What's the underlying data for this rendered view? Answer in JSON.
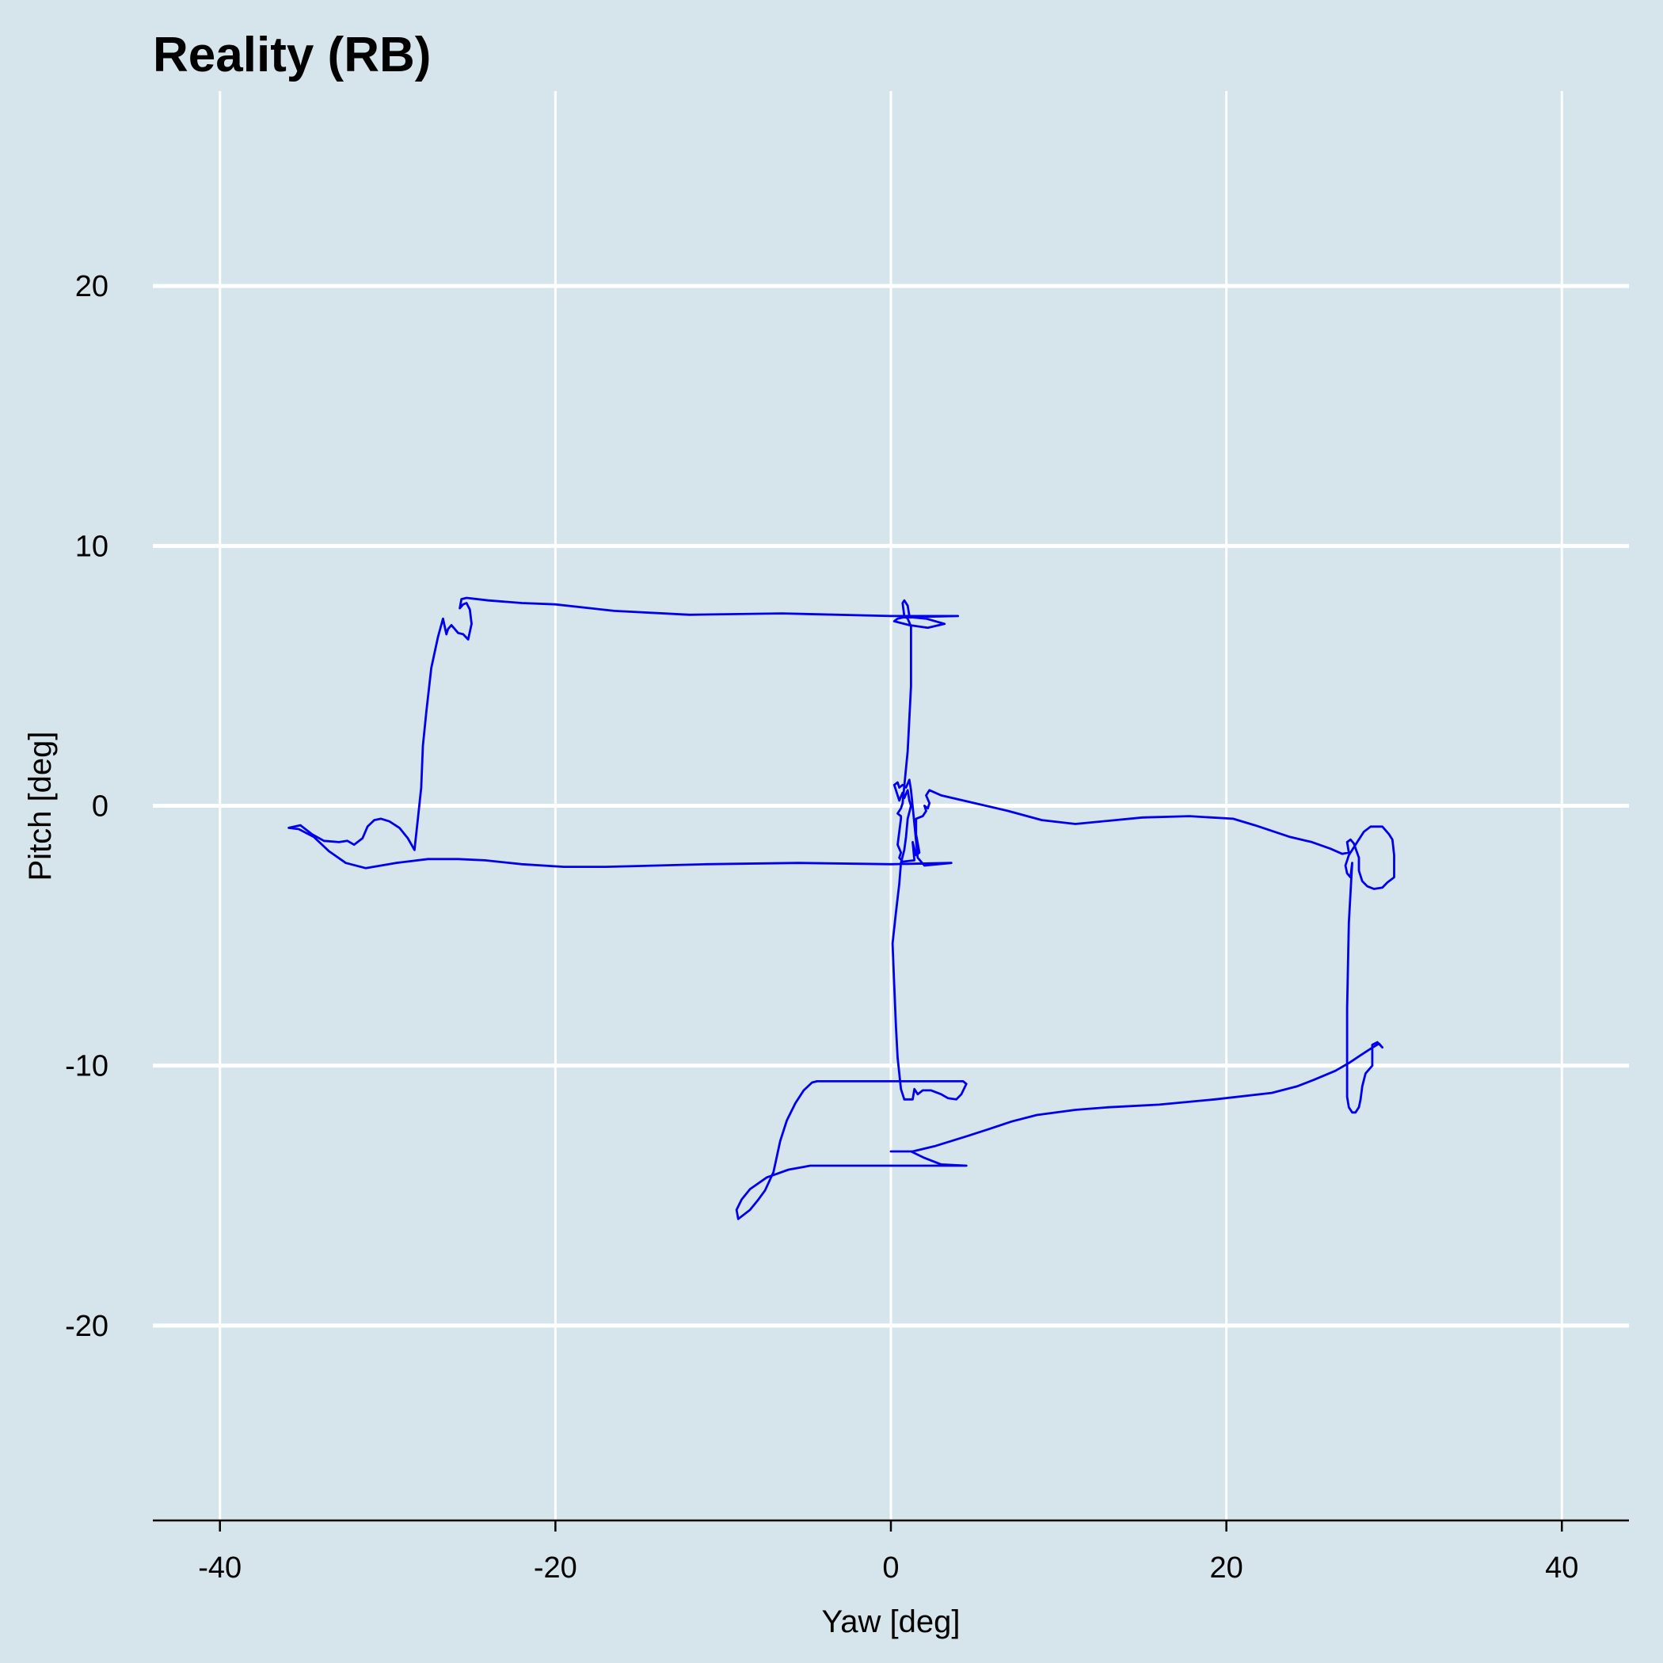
{
  "chart_data": {
    "type": "line",
    "title": "Reality (RB)",
    "xlabel": "Yaw [deg]",
    "ylabel": "Pitch [deg]",
    "xlim": [
      -44,
      44
    ],
    "ylim": [
      -27.5,
      27.5
    ],
    "x_ticks": [
      -40,
      -20,
      0,
      20,
      40
    ],
    "x_tick_labels": [
      "-40",
      "-20",
      "0",
      "20",
      "40"
    ],
    "y_ticks": [
      -20,
      -10,
      0,
      10,
      20
    ],
    "y_tick_labels": [
      "-20",
      "-10",
      "0",
      "10",
      "20"
    ],
    "grid": true,
    "legend": "none",
    "colors": {
      "background": "#d6e5ec",
      "grid": "#ffffff",
      "line": "#0000ee",
      "axis": "#000000"
    },
    "series": [
      {
        "color": "#0000ee",
        "points": [
          [
            4,
            7.3
          ],
          [
            0,
            7.3
          ],
          [
            -6.5,
            7.4
          ],
          [
            -12,
            7.35
          ],
          [
            -16.5,
            7.5
          ],
          [
            -20,
            7.75
          ],
          [
            -22,
            7.8
          ],
          [
            -24,
            7.9
          ],
          [
            -25.3,
            8.0
          ],
          [
            -25.6,
            7.95
          ],
          [
            -25.7,
            7.6
          ],
          [
            -25.5,
            7.75
          ],
          [
            -25.3,
            7.8
          ],
          [
            -25.1,
            7.55
          ],
          [
            -25.0,
            7.0
          ],
          [
            -25.2,
            6.4
          ],
          [
            -25.5,
            6.6
          ],
          [
            -25.8,
            6.65
          ],
          [
            -26.0,
            6.8
          ],
          [
            -26.2,
            6.95
          ],
          [
            -26.4,
            6.8
          ],
          [
            -26.5,
            6.6
          ],
          [
            -26.7,
            7.2
          ],
          [
            -27.0,
            6.5
          ],
          [
            -27.4,
            5.3
          ],
          [
            -27.7,
            3.6
          ],
          [
            -27.9,
            2.3
          ],
          [
            -28.0,
            0.7
          ],
          [
            -28.2,
            -0.5
          ],
          [
            -28.4,
            -1.7
          ],
          [
            -28.8,
            -1.25
          ],
          [
            -29.3,
            -0.85
          ],
          [
            -29.9,
            -0.6
          ],
          [
            -30.4,
            -0.5
          ],
          [
            -30.8,
            -0.55
          ],
          [
            -31.2,
            -0.8
          ],
          [
            -31.5,
            -1.25
          ],
          [
            -32.0,
            -1.5
          ],
          [
            -32.4,
            -1.35
          ],
          [
            -32.9,
            -1.4
          ],
          [
            -33.8,
            -1.35
          ],
          [
            -34.5,
            -1.1
          ],
          [
            -35.2,
            -0.75
          ],
          [
            -35.9,
            -0.85
          ],
          [
            -35.3,
            -0.9
          ],
          [
            -34.4,
            -1.2
          ],
          [
            -33.5,
            -1.75
          ],
          [
            -32.5,
            -2.2
          ],
          [
            -31.3,
            -2.4
          ],
          [
            -29.5,
            -2.2
          ],
          [
            -27.6,
            -2.05
          ],
          [
            -25.8,
            -2.05
          ],
          [
            -24.2,
            -2.1
          ],
          [
            -22,
            -2.25
          ],
          [
            -19.5,
            -2.35
          ],
          [
            -17,
            -2.35
          ],
          [
            -14,
            -2.3
          ],
          [
            -11,
            -2.25
          ],
          [
            -5.5,
            -2.2
          ],
          [
            0,
            -2.25
          ],
          [
            3.6,
            -2.2
          ],
          [
            2.0,
            -2.3
          ],
          [
            1.6,
            -2.0
          ],
          [
            1.4,
            -0.7
          ],
          [
            1.2,
            0.6
          ],
          [
            1.1,
            1.0
          ],
          [
            0.9,
            0.7
          ],
          [
            0.7,
            0.8
          ],
          [
            0.5,
            0.7
          ],
          [
            0.4,
            0.9
          ],
          [
            0.2,
            0.8
          ],
          [
            0.3,
            0.6
          ],
          [
            0.5,
            0.2
          ],
          [
            0.7,
            0.5
          ],
          [
            0.8,
            0.3
          ],
          [
            1.0,
            0.6
          ],
          [
            1.1,
            0.2
          ],
          [
            1.2,
            0.0
          ],
          [
            1.0,
            -0.5
          ],
          [
            0.9,
            -1.2
          ],
          [
            0.8,
            -1.7
          ],
          [
            0.6,
            -2.2
          ],
          [
            0.5,
            -3.0
          ],
          [
            0.3,
            -4.1
          ],
          [
            0.1,
            -5.3
          ],
          [
            0.2,
            -6.9
          ],
          [
            0.3,
            -8.5
          ],
          [
            0.4,
            -9.7
          ],
          [
            0.6,
            -10.9
          ],
          [
            0.8,
            -11.3
          ],
          [
            1.3,
            -11.3
          ],
          [
            1.4,
            -10.9
          ],
          [
            1.6,
            -11.1
          ],
          [
            1.9,
            -10.95
          ],
          [
            2.4,
            -10.95
          ],
          [
            3.0,
            -11.1
          ],
          [
            3.4,
            -11.25
          ],
          [
            3.9,
            -11.3
          ],
          [
            4.2,
            -11.1
          ],
          [
            4.5,
            -10.7
          ],
          [
            4.3,
            -10.6
          ],
          [
            0,
            -10.6
          ],
          [
            -4.4,
            -10.6
          ],
          [
            -4.7,
            -10.65
          ],
          [
            -5.2,
            -10.95
          ],
          [
            -5.7,
            -11.45
          ],
          [
            -6.2,
            -12.1
          ],
          [
            -6.6,
            -12.9
          ],
          [
            -7.0,
            -14.1
          ],
          [
            -7.5,
            -14.8
          ],
          [
            -7.9,
            -15.15
          ],
          [
            -8.4,
            -15.55
          ],
          [
            -9.1,
            -15.9
          ],
          [
            -9.2,
            -15.55
          ],
          [
            -8.9,
            -15.15
          ],
          [
            -8.4,
            -14.75
          ],
          [
            -7.4,
            -14.3
          ],
          [
            -6.1,
            -14.0
          ],
          [
            -4.8,
            -13.85
          ],
          [
            0,
            -13.85
          ],
          [
            4.5,
            -13.85
          ],
          [
            3.0,
            -13.8
          ],
          [
            2.0,
            -13.55
          ],
          [
            1.2,
            -13.3
          ],
          [
            0,
            -13.3
          ],
          [
            1.3,
            -13.3
          ],
          [
            2.6,
            -13.1
          ],
          [
            4.6,
            -12.7
          ],
          [
            5.8,
            -12.45
          ],
          [
            7.2,
            -12.15
          ],
          [
            8.7,
            -11.9
          ],
          [
            11,
            -11.7
          ],
          [
            13,
            -11.6
          ],
          [
            16,
            -11.5
          ],
          [
            19.3,
            -11.3
          ],
          [
            22.7,
            -11.05
          ],
          [
            24.2,
            -10.8
          ],
          [
            25.2,
            -10.55
          ],
          [
            26.5,
            -10.2
          ],
          [
            27.3,
            -9.9
          ],
          [
            28.0,
            -9.6
          ],
          [
            28.6,
            -9.35
          ],
          [
            29.1,
            -9.15
          ],
          [
            29.3,
            -9.3
          ],
          [
            29.0,
            -9.1
          ],
          [
            28.7,
            -9.2
          ],
          [
            28.7,
            -9.7
          ],
          [
            28.7,
            -10.0
          ],
          [
            28.3,
            -10.3
          ],
          [
            28.1,
            -10.8
          ],
          [
            28.0,
            -11.3
          ],
          [
            27.9,
            -11.6
          ],
          [
            27.7,
            -11.8
          ],
          [
            27.5,
            -11.8
          ],
          [
            27.3,
            -11.6
          ],
          [
            27.2,
            -11.2
          ],
          [
            27.2,
            -9.7
          ],
          [
            27.2,
            -7.8
          ],
          [
            27.3,
            -4.5
          ],
          [
            27.5,
            -2.2
          ],
          [
            27.4,
            -2.75
          ],
          [
            27.2,
            -2.6
          ],
          [
            27.1,
            -2.3
          ],
          [
            27.3,
            -1.9
          ],
          [
            27.7,
            -1.5
          ],
          [
            28.2,
            -1.0
          ],
          [
            28.6,
            -0.8
          ],
          [
            29.3,
            -0.8
          ],
          [
            29.7,
            -1.1
          ],
          [
            29.9,
            -1.3
          ],
          [
            30.0,
            -1.9
          ],
          [
            30.0,
            -2.3
          ],
          [
            30.0,
            -2.75
          ],
          [
            29.6,
            -2.95
          ],
          [
            29.3,
            -3.15
          ],
          [
            28.8,
            -3.2
          ],
          [
            28.4,
            -3.1
          ],
          [
            28.1,
            -2.9
          ],
          [
            27.9,
            -2.5
          ],
          [
            27.9,
            -2.0
          ],
          [
            27.6,
            -1.45
          ],
          [
            27.4,
            -1.3
          ],
          [
            27.2,
            -1.4
          ],
          [
            27.3,
            -1.8
          ],
          [
            26.9,
            -1.85
          ],
          [
            26.2,
            -1.65
          ],
          [
            25.1,
            -1.4
          ],
          [
            23.8,
            -1.2
          ],
          [
            21.7,
            -0.75
          ],
          [
            20.4,
            -0.5
          ],
          [
            17.8,
            -0.4
          ],
          [
            15,
            -0.45
          ],
          [
            11,
            -0.7
          ],
          [
            9,
            -0.55
          ],
          [
            7,
            -0.2
          ],
          [
            5,
            0.1
          ],
          [
            3,
            0.4
          ],
          [
            2.3,
            0.6
          ],
          [
            2.1,
            0.4
          ],
          [
            2.3,
            0.1
          ],
          [
            2.2,
            -0.1
          ],
          [
            2.0,
            0.0
          ],
          [
            2.1,
            -0.2
          ],
          [
            1.9,
            -0.4
          ],
          [
            1.5,
            -0.5
          ],
          [
            1.5,
            -1.1
          ],
          [
            1.7,
            -1.8
          ],
          [
            1.5,
            -1.9
          ],
          [
            1.3,
            -1.4
          ],
          [
            1.4,
            -2.1
          ],
          [
            0.7,
            -2.15
          ],
          [
            0.5,
            -2.0
          ],
          [
            0.6,
            -1.8
          ],
          [
            0.4,
            -1.5
          ],
          [
            0.5,
            -1.0
          ],
          [
            0.6,
            -0.5
          ],
          [
            0.6,
            -0.4
          ],
          [
            0.4,
            -0.3
          ],
          [
            0.6,
            -0.1
          ],
          [
            0.7,
            0.1
          ],
          [
            1.0,
            2.1
          ],
          [
            1.2,
            4.6
          ],
          [
            1.2,
            6.3
          ],
          [
            1.2,
            6.9
          ],
          [
            1.0,
            7.2
          ],
          [
            0.8,
            7.3
          ],
          [
            0.7,
            7.8
          ],
          [
            0.8,
            7.9
          ],
          [
            1.0,
            7.7
          ],
          [
            1.1,
            7.3
          ],
          [
            0.4,
            7.2
          ],
          [
            0.2,
            7.1
          ],
          [
            1.1,
            6.95
          ],
          [
            2.2,
            6.85
          ],
          [
            3.2,
            7.0
          ],
          [
            2.1,
            7.2
          ],
          [
            1.3,
            7.25
          ],
          [
            0.6,
            7.25
          ],
          [
            4,
            7.3
          ]
        ]
      }
    ]
  }
}
